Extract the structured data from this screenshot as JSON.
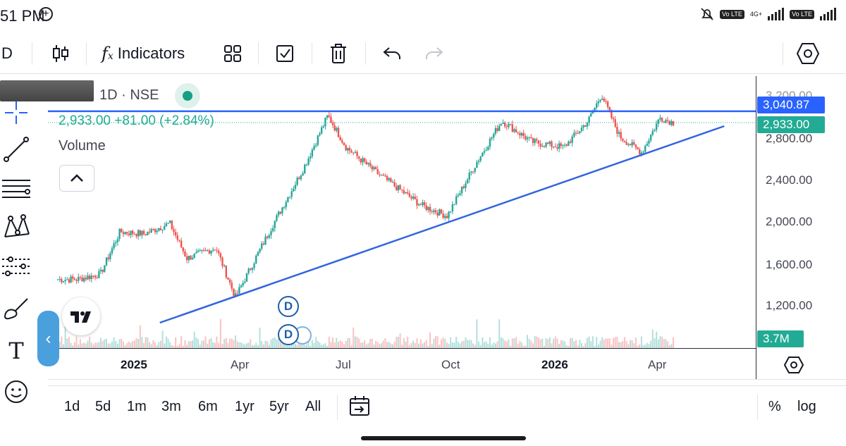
{
  "status_bar": {
    "time": "51 PM",
    "icons": [
      "add-circle-icon",
      "mute-bell-icon",
      "volte-icon",
      "signal-icon",
      "volte-icon",
      "signal-icon"
    ],
    "network": "4G+",
    "volte_label": "Vo LTE"
  },
  "toolbar": {
    "interval": "D",
    "indicators_label": "Indicators",
    "icons": [
      "candlestick-icon",
      "fx-icon",
      "templates-icon",
      "checkbox-icon",
      "trash-icon",
      "undo-icon",
      "redo-icon",
      "settings-hexagon-icon"
    ]
  },
  "legend": {
    "symbol_redacted": "",
    "interval_exchange": "1D · NSE",
    "quote": "2,933.00  +81.00 (+2.84%)",
    "volume_label": "Volume",
    "collapse_icon": "chevron-up-icon"
  },
  "left_tools": [
    "crosshair-icon",
    "trend-line-icon",
    "fib-retracement-icon",
    "pattern-icon",
    "forecast-icon",
    "brush-icon",
    "text-icon",
    "emoji-icon"
  ],
  "price_axis": {
    "ticks": [
      "3,200.00",
      "2,800.00",
      "2,400.00",
      "2,000.00",
      "1,600.00",
      "1,200.00"
    ],
    "horizontal_line_label": "3,040.87",
    "last_price_label": "2,933.00",
    "volume_label": "3.7M"
  },
  "time_axis": {
    "ticks": [
      "2025",
      "Apr",
      "Jul",
      "Oct",
      "2026",
      "Apr"
    ]
  },
  "markers": {
    "dividend_1": "D",
    "dividend_2": "D"
  },
  "range_bar": {
    "ranges": [
      "1d",
      "5d",
      "1m",
      "3m",
      "6m",
      "1yr",
      "5yr",
      "All"
    ],
    "percent_label": "%",
    "log_label": "log"
  },
  "colors": {
    "up": "#26a69a",
    "down": "#ef5350",
    "drawing_line": "#2962ff",
    "trend_line": "#3366dd",
    "last_price": "#22ab94",
    "side_handle": "#4a9fdd"
  },
  "chart_data": {
    "type": "candlestick",
    "x_range": [
      "2024-11-15",
      "2026-04-05"
    ],
    "ylim": [
      1000,
      3300
    ],
    "horizontal_level": 3040.87,
    "trend_line": [
      {
        "date": "2025-02-15",
        "price": 1040
      },
      {
        "date": "2026-05-25",
        "price": 2900
      }
    ],
    "price_path": [
      {
        "date": "2024-12-01",
        "price": 1450
      },
      {
        "date": "2024-12-20",
        "price": 1500
      },
      {
        "date": "2025-01-05",
        "price": 1900
      },
      {
        "date": "2025-01-25",
        "price": 1880
      },
      {
        "date": "2025-02-15",
        "price": 1980
      },
      {
        "date": "2025-03-01",
        "price": 1650
      },
      {
        "date": "2025-03-25",
        "price": 1750
      },
      {
        "date": "2025-04-10",
        "price": 1280
      },
      {
        "date": "2025-05-10",
        "price": 1950
      },
      {
        "date": "2025-06-05",
        "price": 2500
      },
      {
        "date": "2025-06-25",
        "price": 3000
      },
      {
        "date": "2025-07-10",
        "price": 2700
      },
      {
        "date": "2025-08-05",
        "price": 2450
      },
      {
        "date": "2025-09-10",
        "price": 2150
      },
      {
        "date": "2025-10-01",
        "price": 2050
      },
      {
        "date": "2025-10-25",
        "price": 2550
      },
      {
        "date": "2025-11-15",
        "price": 2950
      },
      {
        "date": "2025-12-10",
        "price": 2750
      },
      {
        "date": "2026-01-05",
        "price": 2700
      },
      {
        "date": "2026-01-25",
        "price": 2950
      },
      {
        "date": "2026-02-05",
        "price": 3200
      },
      {
        "date": "2026-02-20",
        "price": 2800
      },
      {
        "date": "2026-03-10",
        "price": 2650
      },
      {
        "date": "2026-03-25",
        "price": 2980
      },
      {
        "date": "2026-04-05",
        "price": 2933
      }
    ],
    "candles_shown": 330
  }
}
